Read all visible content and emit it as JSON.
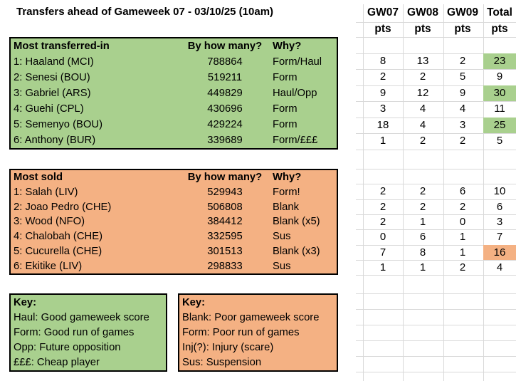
{
  "title": "Transfers ahead of Gameweek 07 - 03/10/25 (10am)",
  "colors": {
    "table_green": "#a9d08e",
    "table_orange": "#f4b183",
    "gridline": "#d9d9d9",
    "border": "#000000"
  },
  "points_grid": {
    "columns": [
      {
        "label": "GW07",
        "sub": "pts"
      },
      {
        "label": "GW08",
        "sub": "pts"
      },
      {
        "label": "GW09",
        "sub": "pts"
      },
      {
        "label": "Total",
        "sub": "pts"
      }
    ]
  },
  "transferred_in": {
    "header": {
      "col1": "Most transferred-in",
      "col2": "By how many?",
      "col3": "Why?"
    },
    "rows": [
      {
        "name": "1: Haaland (MCI)",
        "count": "788864",
        "why": "Form/Haul",
        "pts": [
          "8",
          "13",
          "2",
          "23"
        ],
        "total_highlight": true
      },
      {
        "name": "2: Senesi (BOU)",
        "count": "519211",
        "why": "Form",
        "pts": [
          "2",
          "2",
          "5",
          "9"
        ],
        "total_highlight": false
      },
      {
        "name": "3: Gabriel (ARS)",
        "count": "449829",
        "why": "Haul/Opp",
        "pts": [
          "9",
          "12",
          "9",
          "30"
        ],
        "total_highlight": true
      },
      {
        "name": "4: Guehi (CPL)",
        "count": "430696",
        "why": "Form",
        "pts": [
          "3",
          "4",
          "4",
          "11"
        ],
        "total_highlight": false
      },
      {
        "name": "5: Semenyo (BOU)",
        "count": "429224",
        "why": "Form",
        "pts": [
          "18",
          "4",
          "3",
          "25"
        ],
        "total_highlight": true
      },
      {
        "name": "6: Anthony (BUR)",
        "count": "339689",
        "why": "Form/£££",
        "pts": [
          "1",
          "2",
          "2",
          "5"
        ],
        "total_highlight": false
      }
    ]
  },
  "most_sold": {
    "header": {
      "col1": "Most sold",
      "col2": "By how many?",
      "col3": "Why?"
    },
    "rows": [
      {
        "name": "1: Salah (LIV)",
        "count": "529943",
        "why": "Form!",
        "pts": [
          "2",
          "2",
          "6",
          "10"
        ],
        "total_highlight": false
      },
      {
        "name": "2: Joao Pedro (CHE)",
        "count": "506808",
        "why": "Blank",
        "pts": [
          "2",
          "2",
          "2",
          "6"
        ],
        "total_highlight": false
      },
      {
        "name": "3: Wood (NFO)",
        "count": "384412",
        "why": "Blank (x5)",
        "pts": [
          "2",
          "1",
          "0",
          "3"
        ],
        "total_highlight": false
      },
      {
        "name": "4: Chalobah (CHE)",
        "count": "332595",
        "why": "Sus",
        "pts": [
          "0",
          "6",
          "1",
          "7"
        ],
        "total_highlight": false
      },
      {
        "name": "5: Cucurella (CHE)",
        "count": "301513",
        "why": "Blank (x3)",
        "pts": [
          "7",
          "8",
          "1",
          "16"
        ],
        "total_highlight": true
      },
      {
        "name": "6: Ekitike (LIV)",
        "count": "298833",
        "why": "Sus",
        "pts": [
          "1",
          "1",
          "2",
          "4"
        ],
        "total_highlight": false
      }
    ]
  },
  "key_green": {
    "title": "Key:",
    "lines": [
      "Haul: Good gameweek score",
      "Form: Good run of games",
      "Opp: Future opposition",
      "£££: Cheap player"
    ]
  },
  "key_orange": {
    "title": "Key:",
    "lines": [
      "Blank: Poor gameweek score",
      "Form: Poor run of games",
      "Inj(?): Injury (scare)",
      "Sus: Suspension"
    ]
  }
}
